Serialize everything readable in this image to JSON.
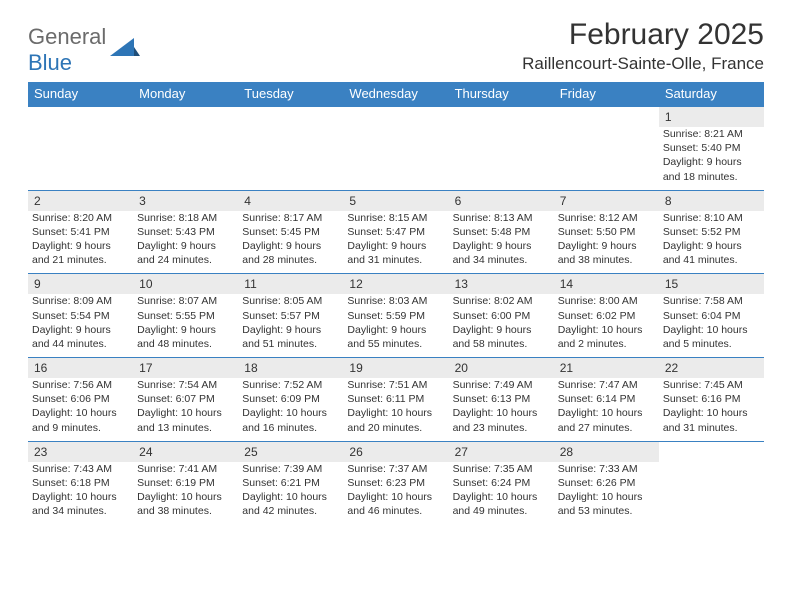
{
  "brand": {
    "text_gray": "General",
    "text_blue": "Blue"
  },
  "title": "February 2025",
  "location": "Raillencourt-Sainte-Olle, France",
  "colors": {
    "header_bg": "#3a81c2",
    "header_text": "#ffffff",
    "daynum_bg": "#ebebeb",
    "border": "#3a81c2",
    "text": "#333333",
    "logo_gray": "#6b6b6b",
    "logo_blue": "#2e75b6",
    "page_bg": "#ffffff"
  },
  "daysOfWeek": [
    "Sunday",
    "Monday",
    "Tuesday",
    "Wednesday",
    "Thursday",
    "Friday",
    "Saturday"
  ],
  "weeks": [
    [
      null,
      null,
      null,
      null,
      null,
      null,
      {
        "n": "1",
        "sunrise": "8:21 AM",
        "sunset": "5:40 PM",
        "daylight": "9 hours and 18 minutes."
      }
    ],
    [
      {
        "n": "2",
        "sunrise": "8:20 AM",
        "sunset": "5:41 PM",
        "daylight": "9 hours and 21 minutes."
      },
      {
        "n": "3",
        "sunrise": "8:18 AM",
        "sunset": "5:43 PM",
        "daylight": "9 hours and 24 minutes."
      },
      {
        "n": "4",
        "sunrise": "8:17 AM",
        "sunset": "5:45 PM",
        "daylight": "9 hours and 28 minutes."
      },
      {
        "n": "5",
        "sunrise": "8:15 AM",
        "sunset": "5:47 PM",
        "daylight": "9 hours and 31 minutes."
      },
      {
        "n": "6",
        "sunrise": "8:13 AM",
        "sunset": "5:48 PM",
        "daylight": "9 hours and 34 minutes."
      },
      {
        "n": "7",
        "sunrise": "8:12 AM",
        "sunset": "5:50 PM",
        "daylight": "9 hours and 38 minutes."
      },
      {
        "n": "8",
        "sunrise": "8:10 AM",
        "sunset": "5:52 PM",
        "daylight": "9 hours and 41 minutes."
      }
    ],
    [
      {
        "n": "9",
        "sunrise": "8:09 AM",
        "sunset": "5:54 PM",
        "daylight": "9 hours and 44 minutes."
      },
      {
        "n": "10",
        "sunrise": "8:07 AM",
        "sunset": "5:55 PM",
        "daylight": "9 hours and 48 minutes."
      },
      {
        "n": "11",
        "sunrise": "8:05 AM",
        "sunset": "5:57 PM",
        "daylight": "9 hours and 51 minutes."
      },
      {
        "n": "12",
        "sunrise": "8:03 AM",
        "sunset": "5:59 PM",
        "daylight": "9 hours and 55 minutes."
      },
      {
        "n": "13",
        "sunrise": "8:02 AM",
        "sunset": "6:00 PM",
        "daylight": "9 hours and 58 minutes."
      },
      {
        "n": "14",
        "sunrise": "8:00 AM",
        "sunset": "6:02 PM",
        "daylight": "10 hours and 2 minutes."
      },
      {
        "n": "15",
        "sunrise": "7:58 AM",
        "sunset": "6:04 PM",
        "daylight": "10 hours and 5 minutes."
      }
    ],
    [
      {
        "n": "16",
        "sunrise": "7:56 AM",
        "sunset": "6:06 PM",
        "daylight": "10 hours and 9 minutes."
      },
      {
        "n": "17",
        "sunrise": "7:54 AM",
        "sunset": "6:07 PM",
        "daylight": "10 hours and 13 minutes."
      },
      {
        "n": "18",
        "sunrise": "7:52 AM",
        "sunset": "6:09 PM",
        "daylight": "10 hours and 16 minutes."
      },
      {
        "n": "19",
        "sunrise": "7:51 AM",
        "sunset": "6:11 PM",
        "daylight": "10 hours and 20 minutes."
      },
      {
        "n": "20",
        "sunrise": "7:49 AM",
        "sunset": "6:13 PM",
        "daylight": "10 hours and 23 minutes."
      },
      {
        "n": "21",
        "sunrise": "7:47 AM",
        "sunset": "6:14 PM",
        "daylight": "10 hours and 27 minutes."
      },
      {
        "n": "22",
        "sunrise": "7:45 AM",
        "sunset": "6:16 PM",
        "daylight": "10 hours and 31 minutes."
      }
    ],
    [
      {
        "n": "23",
        "sunrise": "7:43 AM",
        "sunset": "6:18 PM",
        "daylight": "10 hours and 34 minutes."
      },
      {
        "n": "24",
        "sunrise": "7:41 AM",
        "sunset": "6:19 PM",
        "daylight": "10 hours and 38 minutes."
      },
      {
        "n": "25",
        "sunrise": "7:39 AM",
        "sunset": "6:21 PM",
        "daylight": "10 hours and 42 minutes."
      },
      {
        "n": "26",
        "sunrise": "7:37 AM",
        "sunset": "6:23 PM",
        "daylight": "10 hours and 46 minutes."
      },
      {
        "n": "27",
        "sunrise": "7:35 AM",
        "sunset": "6:24 PM",
        "daylight": "10 hours and 49 minutes."
      },
      {
        "n": "28",
        "sunrise": "7:33 AM",
        "sunset": "6:26 PM",
        "daylight": "10 hours and 53 minutes."
      },
      null
    ]
  ],
  "labels": {
    "sunrise": "Sunrise: ",
    "sunset": "Sunset: ",
    "daylight": "Daylight: "
  }
}
